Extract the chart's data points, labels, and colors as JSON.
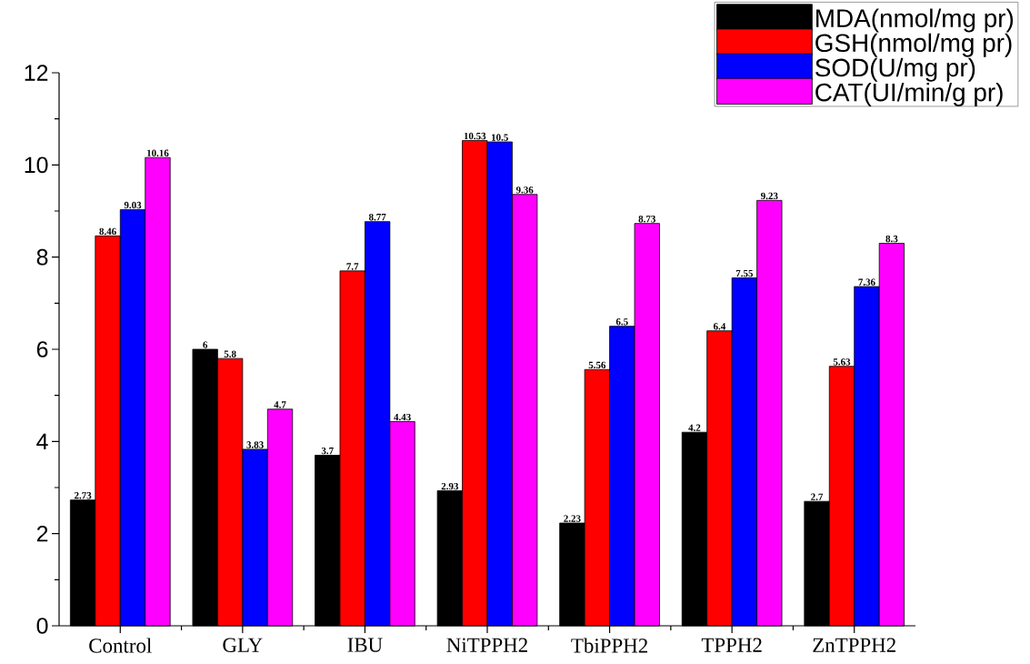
{
  "chart_data": {
    "type": "bar",
    "categories": [
      "Control",
      "GLY",
      "IBU",
      "NiTPPH2",
      "TbiPPH2",
      "TPPH2",
      "ZnTPPH2"
    ],
    "series": [
      {
        "name": "MDA(nmol/mg pr)",
        "color": "#000000",
        "values": [
          2.73,
          6,
          3.7,
          2.93,
          2.23,
          4.2,
          2.7
        ]
      },
      {
        "name": "GSH(nmol/mg pr)",
        "color": "#ff0000",
        "values": [
          8.46,
          5.8,
          7.7,
          10.53,
          5.56,
          6.4,
          5.63
        ]
      },
      {
        "name": "SOD(U/mg pr)",
        "color": "#0000ff",
        "values": [
          9.03,
          3.83,
          8.77,
          10.5,
          6.5,
          7.55,
          7.36
        ]
      },
      {
        "name": "CAT(UI/min/g pr)",
        "color": "#ff00ff",
        "values": [
          10.16,
          4.7,
          4.43,
          9.36,
          8.73,
          9.23,
          8.3
        ]
      }
    ],
    "ylim": [
      0,
      12
    ],
    "yticks": [
      0,
      2,
      4,
      6,
      8,
      10,
      12
    ],
    "data_labels": true,
    "legend": "top right"
  }
}
